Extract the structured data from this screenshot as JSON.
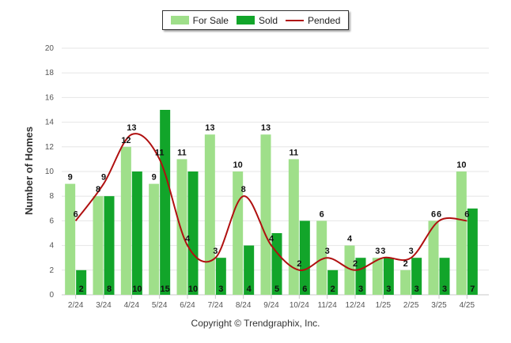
{
  "chart_data": {
    "type": "bar",
    "categories": [
      "2/24",
      "3/24",
      "4/24",
      "5/24",
      "6/24",
      "7/24",
      "8/24",
      "9/24",
      "10/24",
      "11/24",
      "12/24",
      "1/25",
      "2/25",
      "3/25",
      "4/25"
    ],
    "series": [
      {
        "name": "For Sale",
        "type": "bar",
        "color": "#9fdf8a",
        "values": [
          9,
          8,
          12,
          9,
          11,
          13,
          10,
          13,
          11,
          6,
          4,
          3,
          2,
          6,
          10
        ]
      },
      {
        "name": "Sold",
        "type": "bar",
        "color": "#12a52a",
        "values": [
          2,
          8,
          10,
          15,
          10,
          3,
          4,
          5,
          6,
          2,
          3,
          3,
          3,
          3,
          7
        ]
      },
      {
        "name": "Pended",
        "type": "line",
        "color": "#b01010",
        "values": [
          6,
          9,
          13,
          11,
          4,
          3,
          8,
          4,
          2,
          3,
          2,
          3,
          3,
          6,
          6
        ]
      }
    ],
    "ylabel": "Number of Homes",
    "ylim": [
      0,
      20
    ],
    "yticks": [
      "0",
      "2",
      "4",
      "6",
      "8",
      "10",
      "12",
      "14",
      "16",
      "18",
      "20"
    ],
    "grid": true,
    "legend_position": "top-center"
  },
  "footer": {
    "copyright": "Copyright © Trendgraphix, Inc."
  }
}
